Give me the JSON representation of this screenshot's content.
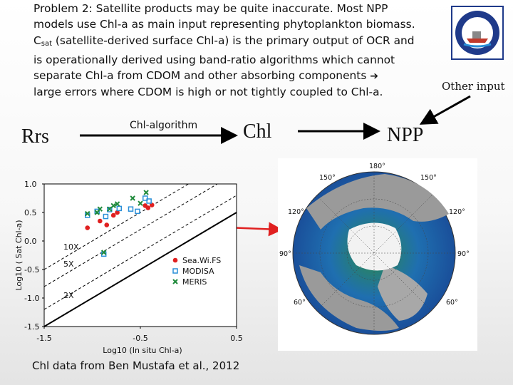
{
  "slide": {
    "lines": [
      "Problem 2: Satellite products may be quite inaccurate. Most NPP",
      "models use Chl-a as main input representing phytoplankton biomass.",
      "(satellite-derived surface Chl-a) is the primary output of OCR and",
      "is operationally derived using band-ratio algorithms which cannot",
      "separate Chl-a from CDOM and other absorbing components",
      "large errors where CDOM is high or not tightly coupled to Chl-a."
    ],
    "csat_main": "C",
    "csat_sub": "sat",
    "arrow_icon": "➔",
    "other_input": "Other input",
    "flow": {
      "rrs": "Rrs",
      "algorithm": "Chl-algorithm",
      "chl": "Chl",
      "npp": "NPP"
    },
    "credit": "Chl data from Ben Mustafa et al., 2012"
  },
  "icons": {
    "logo": "circular-institution-seal-icon",
    "arrow": "heavy-right-arrow-icon"
  },
  "colors": {
    "seawifs": "#e02020",
    "modis": "#2a8fd8",
    "meris": "#1f8a3b",
    "arrow": "#e02020",
    "accent": "#1f3a8a"
  },
  "chart_data": {
    "type": "scatter",
    "xlabel": "Log10 (In situ Chl-a)",
    "ylabel": "Log10 ( Sat Chl-a)",
    "xlim": [
      -1.5,
      0.5
    ],
    "ylim": [
      -1.5,
      1.0
    ],
    "x_ticks": [
      "-1.5",
      "-0.5",
      "0.5"
    ],
    "y_ticks": [
      "1.0",
      "0.5",
      "0.0",
      "-0.5",
      "-1.0",
      "-1.5"
    ],
    "x_tick_values": [
      -1.5,
      -0.5,
      0.5
    ],
    "y_tick_values": [
      1.0,
      0.5,
      0.0,
      -0.5,
      -1.0,
      -1.5
    ],
    "reference_lines": [
      {
        "label": "10X",
        "offset": 1.0,
        "style": "dashed"
      },
      {
        "label": "5X",
        "offset": 0.7,
        "style": "dashed"
      },
      {
        "label": "2X",
        "offset": 0.3,
        "style": "dashed"
      },
      {
        "label": "",
        "offset": 0.0,
        "style": "solid"
      }
    ],
    "legend": "bottom-right",
    "series": [
      {
        "name": "Sea.Wi.FS",
        "marker": "circle",
        "color": "#e02020",
        "points": [
          [
            -1.05,
            0.23
          ],
          [
            -0.92,
            0.35
          ],
          [
            -0.85,
            0.28
          ],
          [
            -0.78,
            0.45
          ],
          [
            -0.74,
            0.5
          ],
          [
            -0.45,
            0.62
          ],
          [
            -0.42,
            0.58
          ],
          [
            -0.38,
            0.63
          ]
        ]
      },
      {
        "name": "MODISA",
        "marker": "square",
        "color": "#2a8fd8",
        "points": [
          [
            -1.05,
            0.45
          ],
          [
            -0.95,
            0.52
          ],
          [
            -0.86,
            0.43
          ],
          [
            -0.82,
            0.55
          ],
          [
            -0.72,
            0.57
          ],
          [
            -0.6,
            0.56
          ],
          [
            -0.53,
            0.52
          ],
          [
            -0.45,
            0.75
          ],
          [
            -0.41,
            0.7
          ],
          [
            -0.88,
            -0.23
          ]
        ]
      },
      {
        "name": "MERIS",
        "marker": "x",
        "color": "#1f8a3b",
        "points": [
          [
            -1.05,
            0.48
          ],
          [
            -0.95,
            0.5
          ],
          [
            -0.92,
            0.56
          ],
          [
            -0.82,
            0.56
          ],
          [
            -0.78,
            0.62
          ],
          [
            -0.74,
            0.65
          ],
          [
            -0.58,
            0.75
          ],
          [
            -0.5,
            0.66
          ],
          [
            -0.44,
            0.85
          ],
          [
            -0.88,
            -0.2
          ]
        ]
      }
    ]
  },
  "map": {
    "lon_labels": [
      "180°",
      "150°",
      "150°",
      "120°",
      "120°",
      "90°",
      "90°",
      "60°",
      "60°"
    ]
  }
}
